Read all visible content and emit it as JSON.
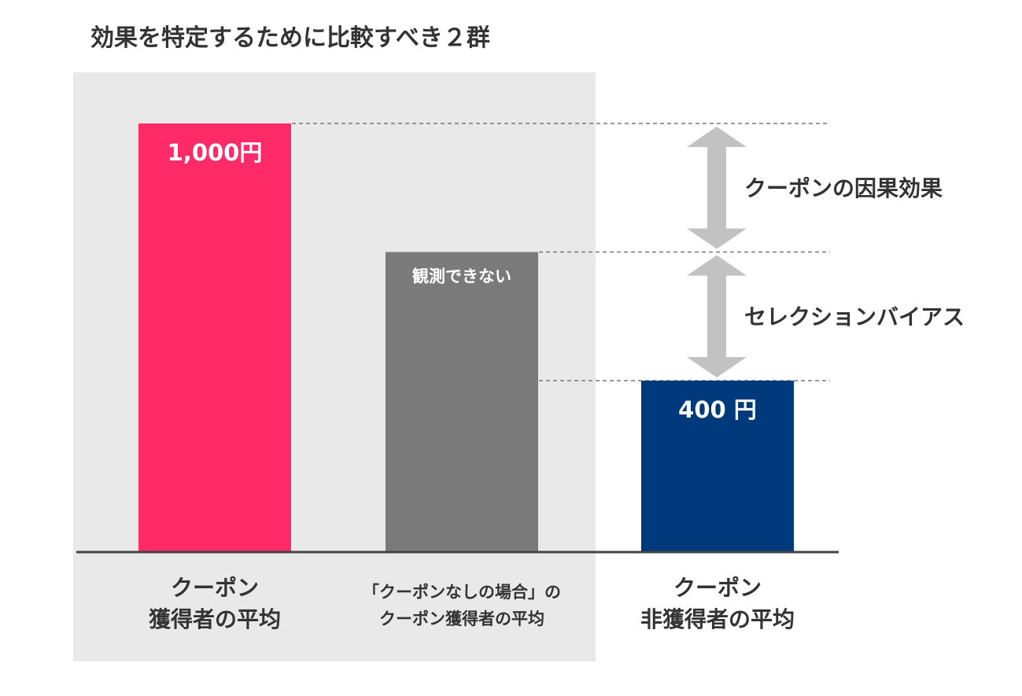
{
  "chart_data": {
    "type": "bar",
    "title": "効果を特定するために比較すべき２群",
    "categories": [
      [
        "クーポン",
        "獲得者の平均"
      ],
      [
        "「クーポンなしの場合」の",
        "クーポン獲得者の平均"
      ],
      [
        "クーポン",
        "非獲得者の平均"
      ]
    ],
    "values": [
      1000,
      700,
      400
    ],
    "value_labels": [
      "1,000円",
      "観測できない",
      "400 円"
    ],
    "bar_colors": [
      "#ff2a68",
      "#7a7a7a",
      "#003a7c"
    ],
    "highlight_background": "#e9e9e9",
    "ylim": [
      0,
      1100
    ],
    "annotations": [
      {
        "label": "クーポンの因果効果",
        "from": 1000,
        "to": 700
      },
      {
        "label": "セレクションバイアス",
        "from": 700,
        "to": 400
      }
    ],
    "arrow_color": "#c2c2c2",
    "dashed_line_color": "#777777"
  }
}
